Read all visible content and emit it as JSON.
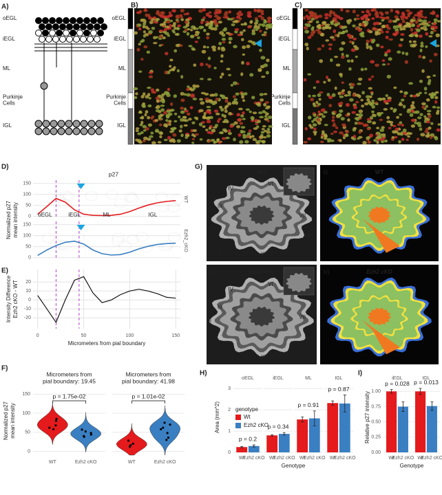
{
  "schematic": {
    "label": "A)",
    "layers": [
      [
        "oEGL"
      ],
      [
        "iEGL"
      ],
      [
        "ML"
      ],
      [
        "Purkinje",
        "Cells"
      ],
      [
        "IGL"
      ]
    ]
  },
  "micrographs": [
    {
      "label": "B)",
      "layers": [
        [
          "oEGL"
        ],
        [
          "iEGL"
        ],
        [
          "ML"
        ],
        [
          "Purkinje",
          "Cells"
        ],
        [
          "IGL"
        ]
      ]
    },
    {
      "label": "C)",
      "layers": [
        [
          "oEGL"
        ],
        [
          "iEGL"
        ],
        [
          "ML"
        ],
        [
          "Purkinje",
          "Cells"
        ],
        [
          "IGL"
        ]
      ]
    }
  ],
  "sections": {
    "label": "G)",
    "panels": [
      {
        "tag": "i)",
        "title": "WT",
        "lobules": [
          "V",
          "VI",
          "IV",
          "III",
          "II",
          "VII",
          "VIII",
          "I",
          "X",
          "IX"
        ]
      },
      {
        "tag": "ii)",
        "title": "WT"
      },
      {
        "tag": "iii)",
        "title": "Ezh2 cKO",
        "lobules": [
          "V",
          "VI",
          "IV",
          "III",
          "II",
          "VII",
          "VIII",
          "I",
          "X",
          "IX"
        ]
      },
      {
        "tag": "iv)",
        "title": "Ezh2 cKO"
      }
    ]
  },
  "chart_data": [
    {
      "type": "line",
      "label": "D)",
      "title": "p27",
      "y_label": [
        "Normalized p27",
        "mean intensity"
      ],
      "x": [
        0,
        10,
        20,
        30,
        40,
        50,
        60,
        70,
        80,
        90,
        100,
        110,
        120,
        130,
        140,
        150
      ],
      "xlim": [
        -5,
        155
      ],
      "ylim": [
        -10,
        165
      ],
      "yticks": [
        0,
        50,
        100,
        150
      ],
      "grid": true,
      "vlines": [
        20,
        45
      ],
      "regions": [
        "oEGL",
        "iEGL",
        "ML",
        "IGL"
      ],
      "facets": [
        {
          "name": "WT",
          "color": "#e41a1c",
          "values": [
            10,
            45,
            82,
            65,
            30,
            10,
            5,
            4,
            5,
            10,
            22,
            38,
            52,
            62,
            68,
            72
          ]
        },
        {
          "name": "Ezh2_cKO",
          "color": "#3a7fc1",
          "values": [
            10,
            35,
            55,
            70,
            75,
            62,
            35,
            18,
            12,
            14,
            25,
            40,
            52,
            60,
            64,
            66
          ]
        }
      ]
    },
    {
      "type": "line",
      "label": "E)",
      "y_label": [
        "Intensity Difference",
        "Ezh2 cKO - WT"
      ],
      "x_label": "Micrometers from pial boundary",
      "x": [
        0,
        10,
        20,
        30,
        40,
        50,
        60,
        70,
        80,
        90,
        100,
        110,
        120,
        130,
        140,
        150
      ],
      "xlim": [
        -5,
        155
      ],
      "xticks": [
        0,
        50,
        100,
        150
      ],
      "ylim": [
        -32,
        34
      ],
      "yticks": [
        -20,
        -10,
        0,
        10,
        20
      ],
      "grid": true,
      "vlines": [
        20,
        45
      ],
      "color": "#111111",
      "values": [
        5,
        -10,
        -25,
        0,
        22,
        26,
        8,
        -3,
        0,
        6,
        10,
        12,
        10,
        7,
        3,
        2
      ]
    },
    {
      "type": "violin",
      "label": "F)",
      "y_label": [
        "Normalized p27",
        "mean intensity"
      ],
      "ylim": [
        -10,
        165
      ],
      "yticks": [
        0,
        50,
        100,
        150
      ],
      "categories": [
        "WT",
        "Ezh2  cKO"
      ],
      "colors": [
        "#e41a1c",
        "#3a7fc1"
      ],
      "facets": [
        {
          "title": [
            "Micrometers from",
            "pial boundary: 19.45"
          ],
          "p_label": "p = 1.75e-02",
          "points": [
            [
              80,
              85,
              62,
              58,
              68
            ],
            [
              57,
              48,
              44,
              40,
              38,
              52
            ]
          ]
        },
        {
          "title": [
            "Micrometers from",
            "pial boundary: 41.98"
          ],
          "p_label": "p = 1.01e-02",
          "points": [
            [
              28,
              20,
              16,
              12
            ],
            [
              75,
              70,
              58,
              48,
              36,
              30,
              62
            ]
          ]
        }
      ]
    },
    {
      "type": "bar",
      "label": "H)",
      "y_label": "Area (mm^2)",
      "x_label": "Genotype",
      "facets": [
        "oEGL",
        "iEGL",
        "ML",
        "IGL"
      ],
      "p_labels": [
        "p = 0.2",
        "p = 0.34",
        "p = 0.91",
        "p = 0.87"
      ],
      "legend": true,
      "legend_title": "genotype",
      "ylim": [
        0,
        3.3
      ],
      "yticks": [
        0,
        1,
        2,
        3
      ],
      "grid": true,
      "series": [
        {
          "name": "Wt",
          "color": "#e41a1c",
          "values": [
            0.25,
            0.8,
            1.55,
            2.32
          ],
          "errors": [
            0.03,
            0.03,
            0.12,
            0.1
          ]
        },
        {
          "name": "Ezh2 cKO",
          "color": "#3a7fc1",
          "values": [
            0.3,
            0.87,
            1.6,
            2.3
          ],
          "errors": [
            0.05,
            0.06,
            0.35,
            0.4
          ]
        }
      ]
    },
    {
      "type": "bar",
      "label": "I)",
      "y_label": "Relative p27 intensity",
      "x_label": "Genotype",
      "facets": [
        "iEGL",
        "IGL"
      ],
      "p_labels": [
        "p = 0.028",
        "p = 0.013"
      ],
      "legend": false,
      "ylim": [
        0,
        1.15
      ],
      "grid": true,
      "yticks": [
        {
          "value": 0,
          "label": "0.00"
        },
        {
          "value": 0.25,
          "label": "0.25"
        },
        {
          "value": 0.5,
          "label": "0.50"
        },
        {
          "value": 0.75,
          "label": "0.75"
        },
        {
          "value": 1,
          "label": "1.00"
        }
      ],
      "series": [
        {
          "name": "Wt",
          "color": "#e41a1c",
          "values": [
            1.0,
            1.0
          ],
          "errors": [
            0.03,
            0.05
          ]
        },
        {
          "name": "Ezh2 cKO",
          "color": "#3a7fc1",
          "values": [
            0.75,
            0.76
          ],
          "errors": [
            0.08,
            0.07
          ]
        }
      ]
    }
  ]
}
